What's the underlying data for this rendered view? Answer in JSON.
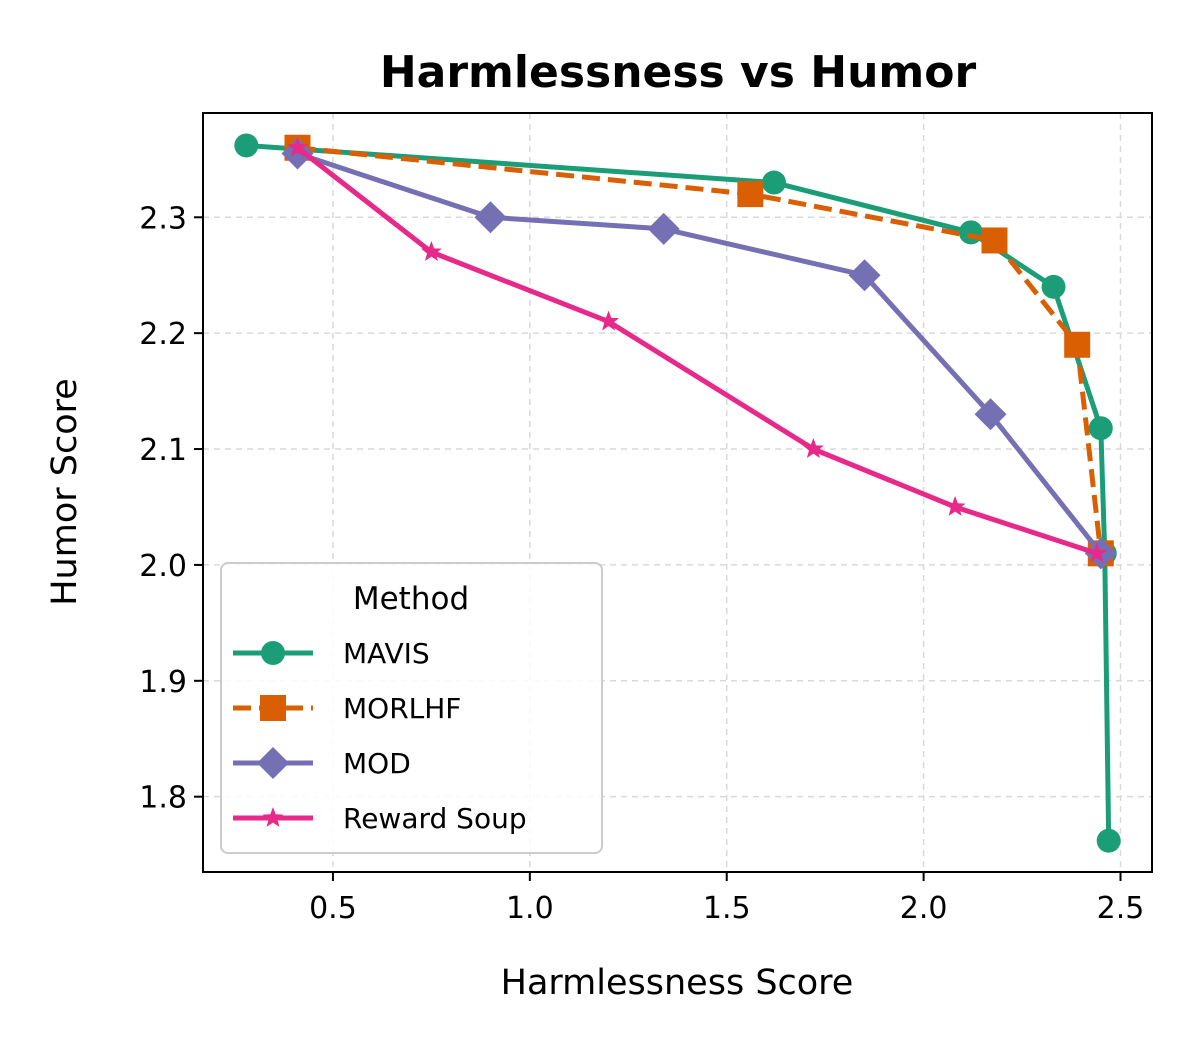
{
  "chart_data": {
    "type": "line",
    "title": "Harmlessness vs Humor",
    "xlabel": "Harmlessness Score",
    "ylabel": "Humor Score",
    "xlim": [
      0.17,
      2.58
    ],
    "ylim": [
      1.735,
      2.39
    ],
    "xticks": [
      0.5,
      1.0,
      1.5,
      2.0,
      2.5
    ],
    "xtick_labels": [
      "0.5",
      "1.0",
      "1.5",
      "2.0",
      "2.5"
    ],
    "yticks": [
      1.8,
      1.9,
      2.0,
      2.1,
      2.2,
      2.3
    ],
    "ytick_labels": [
      "1.8",
      "1.9",
      "2.0",
      "2.1",
      "2.2",
      "2.3"
    ],
    "grid": true,
    "legend": {
      "title": "Method",
      "placement": "lower-left"
    },
    "series": [
      {
        "name": "MAVIS",
        "color": "#1b9e77",
        "marker": "circle",
        "linestyle": "solid",
        "x": [
          0.28,
          1.62,
          2.12,
          2.33,
          2.45,
          2.46,
          2.47
        ],
        "y": [
          2.362,
          2.33,
          2.287,
          2.24,
          2.118,
          2.01,
          1.762
        ]
      },
      {
        "name": "MORLHF",
        "color": "#d95f02",
        "marker": "square",
        "linestyle": "dashed",
        "x": [
          0.41,
          1.56,
          2.18,
          2.39,
          2.45
        ],
        "y": [
          2.36,
          2.32,
          2.28,
          2.19,
          2.01
        ]
      },
      {
        "name": "MOD",
        "color": "#7570b3",
        "marker": "diamond",
        "linestyle": "solid",
        "x": [
          0.41,
          0.9,
          1.34,
          1.85,
          2.17,
          2.45
        ],
        "y": [
          2.355,
          2.3,
          2.29,
          2.25,
          2.13,
          2.01
        ]
      },
      {
        "name": "Reward Soup",
        "color": "#e7298a",
        "marker": "star",
        "linestyle": "solid",
        "x": [
          0.41,
          0.75,
          1.2,
          1.72,
          2.08,
          2.44
        ],
        "y": [
          2.36,
          2.27,
          2.21,
          2.1,
          2.05,
          2.01
        ]
      }
    ]
  }
}
